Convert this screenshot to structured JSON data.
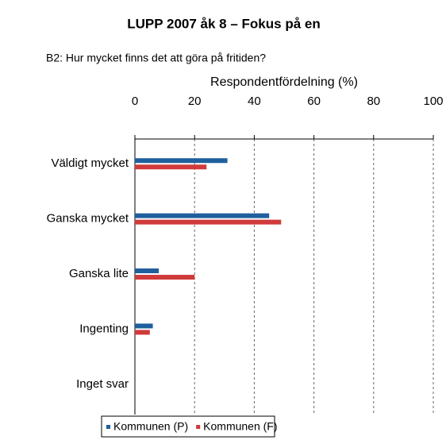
{
  "chart_data": {
    "type": "hbar",
    "title": "LUPP 2007 åk 8 –  Fokus på en",
    "subtitle": "B2: Hur mycket finns det att göra på fritiden?",
    "x_label": "Respondentfördelning (%)",
    "categories": [
      "Väldigt mycket",
      "Ganska mycket",
      "Ganska lite",
      "Ingenting",
      "Inget svar"
    ],
    "series": [
      {
        "name": "Kommunen (P)",
        "color": "#1f5f9e",
        "values": [
          31,
          45,
          8,
          6,
          0
        ]
      },
      {
        "name": "Kommunen (F)",
        "color": "#d03a3a",
        "values": [
          24,
          49,
          20,
          5,
          0
        ]
      }
    ],
    "xlim": [
      0,
      100
    ],
    "xticks": [
      0,
      20,
      40,
      60,
      80,
      100
    ],
    "grid": true,
    "legend": "bottom"
  }
}
